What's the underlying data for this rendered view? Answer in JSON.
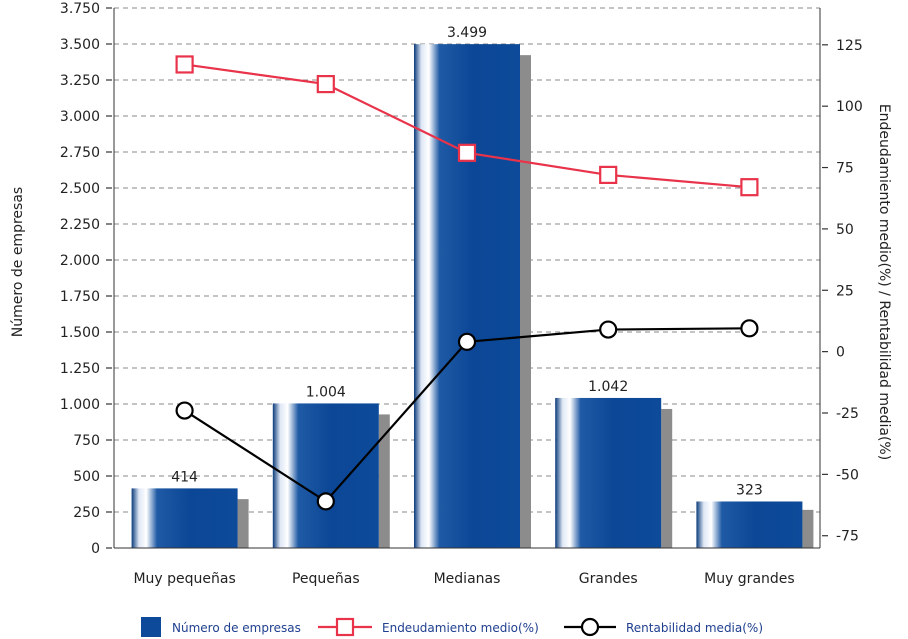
{
  "chart_data": {
    "type": "bar",
    "categories": [
      "Muy pequeñas",
      "Pequeñas",
      "Medianas",
      "Grandes",
      "Muy grandes"
    ],
    "series": [
      {
        "name": "Número de empresas",
        "type": "bar",
        "axis": "left",
        "values": [
          414,
          1004,
          3499,
          1042,
          323
        ],
        "data_labels": [
          "414",
          "1.004",
          "3.499",
          "1.042",
          "323"
        ],
        "color": "#0d4a99"
      },
      {
        "name": "Endeudamiento medio(%)",
        "type": "line",
        "axis": "right",
        "values": [
          117,
          109,
          81,
          72,
          67
        ],
        "color": "#e8334a"
      },
      {
        "name": "Rentabilidad media(%)",
        "type": "line",
        "axis": "right",
        "values": [
          -24,
          -61,
          4,
          9,
          9.5
        ],
        "color": "#000000"
      }
    ],
    "ylabel": "Número de empresas",
    "y2label": "Endeudamiento medio(%) / Rentabilidad media(%)",
    "ylim": [
      0,
      3750
    ],
    "y2lim": [
      -80,
      140
    ],
    "yticks": [
      0,
      250,
      500,
      750,
      1000,
      1250,
      1500,
      1750,
      2000,
      2250,
      2500,
      2750,
      3000,
      3250,
      3500,
      3750
    ],
    "ytick_labels": [
      "0",
      "250",
      "500",
      "750",
      "1.000",
      "1.250",
      "1.500",
      "1.750",
      "2.000",
      "2.250",
      "2.500",
      "2.750",
      "3.000",
      "3.250",
      "3.500",
      "3.750"
    ],
    "y2ticks": [
      -75,
      -50,
      -25,
      0,
      25,
      50,
      75,
      100,
      125
    ],
    "y2tick_labels": [
      "-75",
      "-50",
      "-25",
      "0",
      "25",
      "50",
      "75",
      "100",
      "125"
    ],
    "grid": true,
    "legend_position": "bottom"
  }
}
